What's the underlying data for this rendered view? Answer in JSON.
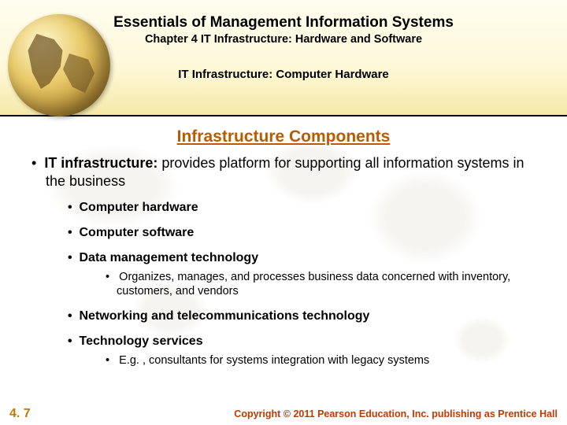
{
  "header": {
    "book_title": "Essentials of Management Information Systems",
    "chapter": "Chapter 4 IT Infrastructure: Hardware and Software",
    "section": "IT Infrastructure: Computer Hardware"
  },
  "topic": "Infrastructure Components",
  "bullets": {
    "main_lead": "IT infrastructure:",
    "main_rest": " provides platform for supporting all information systems in the business",
    "sub": [
      "Computer hardware",
      "Computer software",
      "Data management technology",
      "Networking and telecommunications technology",
      "Technology services"
    ],
    "sub2_data_mgmt": "Organizes, manages, and processes business data concerned with inventory, customers, and vendors",
    "sub2_tech_services": "E.g. , consultants for systems integration with legacy systems"
  },
  "footer": {
    "page": "4. 7",
    "copyright": "Copyright © 2011 Pearson Education, Inc. publishing as Prentice Hall"
  },
  "colors": {
    "topic": "#b85c00",
    "pagenum": "#c27a00",
    "copyright": "#c23a00",
    "header_bg_top": "#fffdf0",
    "header_bg_bottom": "#f5e8a8"
  }
}
